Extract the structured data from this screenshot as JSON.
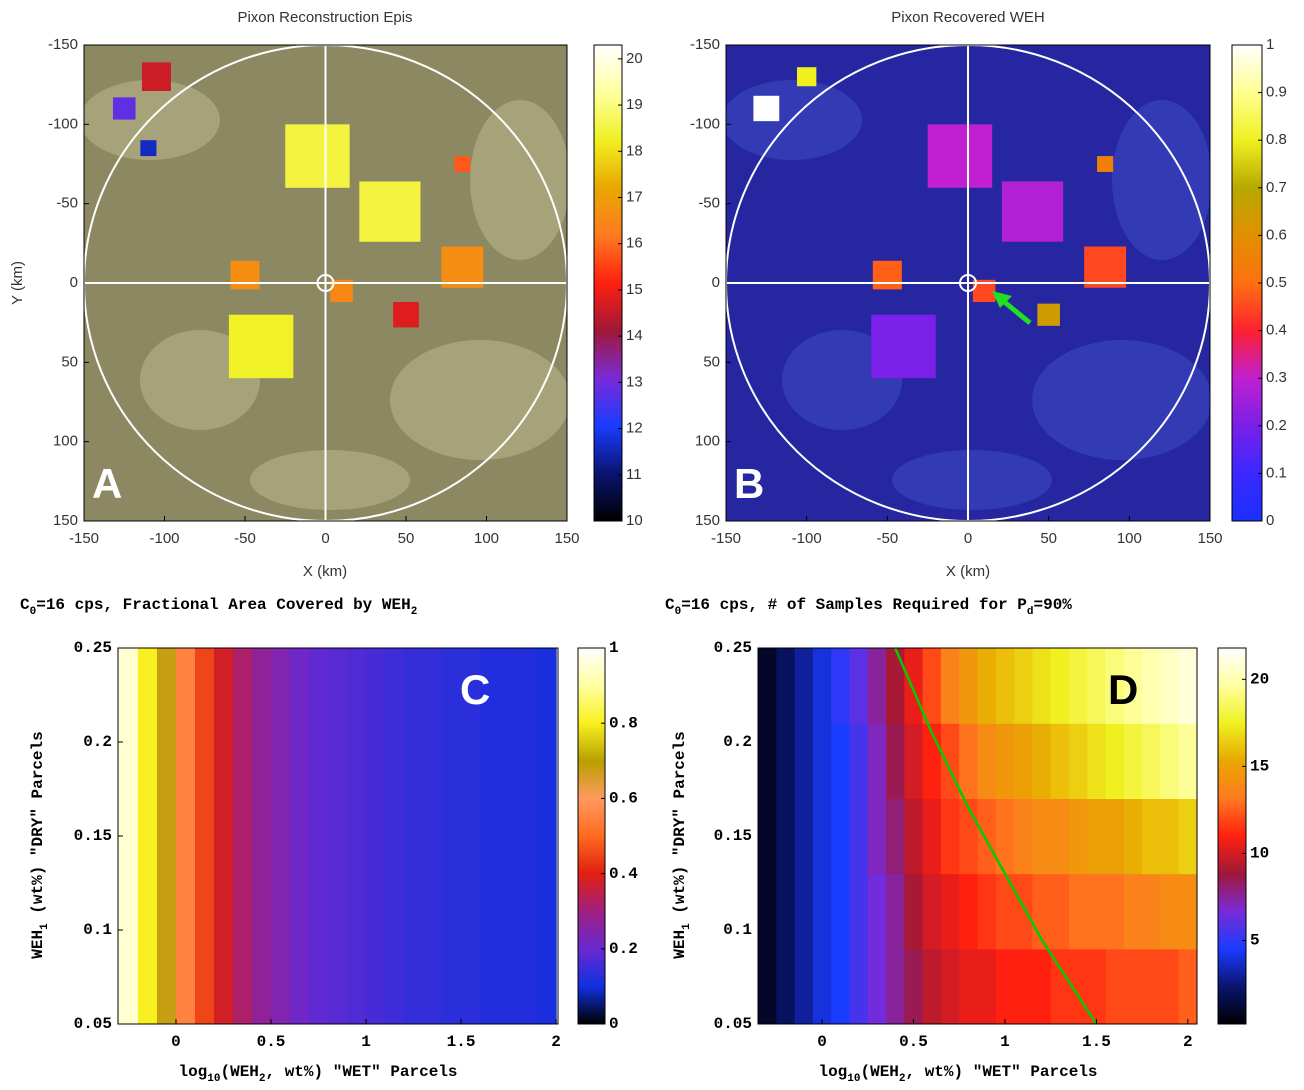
{
  "chart_data": [
    {
      "type": "scatter",
      "title": "Pixon Reconstruction Epis",
      "xlabel": "X (km)",
      "ylabel": "Y (km)",
      "panel_label": "A",
      "xlim": [
        -150,
        150
      ],
      "ylim": [
        150,
        -150
      ],
      "xticks": [
        -150,
        -100,
        -50,
        0,
        50,
        100,
        150
      ],
      "yticks": [
        -150,
        -100,
        -50,
        0,
        50,
        100,
        150
      ],
      "x": [
        -5,
        40,
        -40,
        85,
        -50,
        10,
        -105,
        50,
        -125,
        -110,
        85
      ],
      "y": [
        -80,
        -45,
        40,
        -10,
        -5,
        5,
        -130,
        20,
        -110,
        -85,
        -75
      ],
      "size": [
        40,
        38,
        40,
        26,
        18,
        14,
        18,
        16,
        14,
        10,
        10
      ],
      "values": [
        18.5,
        18.5,
        18.3,
        16.6,
        16.6,
        16.5,
        14.6,
        14.8,
        12.8,
        11.6,
        15.8
      ],
      "clim": [
        10,
        20.3
      ],
      "cticks": [
        10,
        11,
        12,
        13,
        14,
        15,
        16,
        17,
        18,
        19,
        20
      ],
      "colormap": [
        "#000000",
        "#0a1470",
        "#1a3cff",
        "#7a2ad8",
        "#a01838",
        "#ff2010",
        "#ff7a20",
        "#e8a800",
        "#f0f020",
        "#ffffa0",
        "#ffffff"
      ]
    },
    {
      "type": "scatter",
      "title": "Pixon Recovered WEH",
      "xlabel": "X (km)",
      "panel_label": "B",
      "xlim": [
        -150,
        150
      ],
      "ylim": [
        150,
        -150
      ],
      "xticks": [
        -150,
        -100,
        -50,
        0,
        50,
        100,
        150
      ],
      "yticks": [
        -150,
        -100,
        -50,
        0,
        50,
        100,
        150
      ],
      "x": [
        -5,
        40,
        -40,
        85,
        -50,
        10,
        -125,
        -100,
        50,
        85
      ],
      "y": [
        -80,
        -45,
        40,
        -10,
        -5,
        5,
        -110,
        -130,
        20,
        -75
      ],
      "size": [
        40,
        38,
        40,
        26,
        18,
        14,
        16,
        12,
        14,
        10
      ],
      "values": [
        0.3,
        0.28,
        0.2,
        0.45,
        0.48,
        0.45,
        1,
        0.8,
        0.65,
        0.55
      ],
      "clim": [
        0,
        1
      ],
      "cticks": [
        0,
        0.1,
        0.2,
        0.3,
        0.4,
        0.5,
        0.6,
        0.7,
        0.8,
        0.9,
        1
      ],
      "colormap": [
        "#1a30ff",
        "#3a28ff",
        "#7a20e8",
        "#c020d0",
        "#ff2030",
        "#ff7010",
        "#e09000",
        "#b8a800",
        "#f0f020",
        "#ffff90",
        "#ffffff"
      ]
    },
    {
      "type": "heatmap",
      "title": [
        "C",
        "0",
        "=16 cps, Fractional Area Covered by WEH",
        "2"
      ],
      "xlabel": [
        "log",
        "10",
        "(WEH",
        "2",
        ", wt%)  \"WET\" Parcels"
      ],
      "ylabel": [
        "WEH",
        "1",
        "  (wt%)  \"DRY\" Parcels"
      ],
      "panel_label": "C",
      "xlim": [
        -0.305,
        2.01
      ],
      "ylim": [
        0.05,
        0.25
      ],
      "xticks": [
        0,
        0.5,
        1,
        1.5,
        2
      ],
      "yticks": [
        0.05,
        0.1,
        0.15,
        0.2,
        0.25
      ],
      "x": [
        -0.25,
        -0.15,
        -0.05,
        0.05,
        0.15,
        0.25,
        0.35,
        0.45,
        0.55,
        0.65,
        0.75,
        0.85,
        0.95,
        1.05,
        1.15,
        1.25,
        1.35,
        1.45,
        1.55,
        1.65,
        1.75,
        1.85,
        1.95
      ],
      "values": [
        0.95,
        0.8,
        0.68,
        0.55,
        0.45,
        0.38,
        0.32,
        0.27,
        0.24,
        0.21,
        0.19,
        0.18,
        0.17,
        0.16,
        0.15,
        0.14,
        0.14,
        0.13,
        0.13,
        0.12,
        0.12,
        0.12,
        0.11
      ],
      "clim": [
        0,
        1
      ],
      "cticks": [
        0,
        0.2,
        0.4,
        0.6,
        0.8,
        1
      ],
      "colormap": [
        "#000000",
        "#1030e0",
        "#6a28d0",
        "#a02080",
        "#e02010",
        "#ff6a20",
        "#ff9a60",
        "#b8a000",
        "#f8f020",
        "#ffffa0",
        "#ffffff"
      ]
    },
    {
      "type": "heatmap",
      "title": [
        "C",
        "0",
        "=16 cps, # of Samples Required for P",
        "d",
        "=90%"
      ],
      "xlabel": [
        "log",
        "10",
        "(WEH",
        "2",
        ", wt%)  \"WET\" Parcels"
      ],
      "ylabel": [
        "WEH",
        "1",
        "  (wt%)  \"DRY\" Parcels"
      ],
      "panel_label": "D",
      "xlim": [
        -0.35,
        2.05
      ],
      "ylim": [
        0.05,
        0.25
      ],
      "xticks": [
        0,
        0.5,
        1,
        1.5,
        2
      ],
      "yticks": [
        0.05,
        0.1,
        0.15,
        0.2,
        0.25
      ],
      "x": [
        -0.3,
        -0.2,
        -0.1,
        0,
        0.1,
        0.2,
        0.3,
        0.4,
        0.5,
        0.6,
        0.7,
        0.8,
        0.9,
        1,
        1.1,
        1.2,
        1.3,
        1.4,
        1.5,
        1.6,
        1.7,
        1.8,
        1.9,
        2
      ],
      "y": [
        0.07,
        0.11,
        0.15,
        0.19,
        0.23
      ],
      "values": [
        [
          1,
          2,
          3,
          4,
          4.5,
          5.5,
          6.5,
          7.5,
          8.5,
          9.5,
          10,
          10.5,
          10.5,
          11,
          11,
          11,
          11.5,
          11.5,
          11.5,
          12,
          12,
          12,
          12,
          12.5
        ],
        [
          1,
          2,
          3,
          4,
          4.5,
          5.5,
          6.5,
          7.5,
          9,
          10,
          10.5,
          11,
          11.5,
          12,
          12,
          12.5,
          12.5,
          13,
          13,
          13,
          13.5,
          13.5,
          14,
          14
        ],
        [
          1,
          2,
          3,
          4,
          4.5,
          5.5,
          7,
          8,
          9.5,
          10.5,
          11.5,
          12,
          12.5,
          13,
          13.5,
          14,
          14,
          14.5,
          15,
          15,
          15.5,
          16,
          16,
          16.5
        ],
        [
          1,
          2,
          3,
          4,
          4.5,
          5.5,
          7,
          8.5,
          10,
          11,
          12,
          13,
          14,
          14.5,
          15,
          15.5,
          16,
          16.5,
          17,
          17.5,
          18,
          18.5,
          19,
          19.5
        ],
        [
          1,
          2,
          3,
          4,
          5,
          6,
          7.5,
          9,
          10.5,
          12,
          13.5,
          14.5,
          15.5,
          16,
          16.5,
          17,
          17.5,
          18,
          18.5,
          19,
          19.5,
          20,
          20.5,
          21
        ]
      ],
      "line": {
        "color": "#00cc00",
        "x": [
          0.4,
          0.6,
          0.8,
          1.0,
          1.2,
          1.5
        ],
        "y": [
          0.25,
          0.205,
          0.165,
          0.13,
          0.095,
          0.05
        ]
      },
      "clim": [
        0.2,
        21.8
      ],
      "cticks": [
        5,
        10,
        15,
        20
      ],
      "colormap": [
        "#000000",
        "#0a1470",
        "#1a3cff",
        "#7a2ad8",
        "#a01838",
        "#ff2010",
        "#ff7a20",
        "#e8a800",
        "#f0f020",
        "#ffffa0",
        "#ffffff"
      ]
    }
  ]
}
